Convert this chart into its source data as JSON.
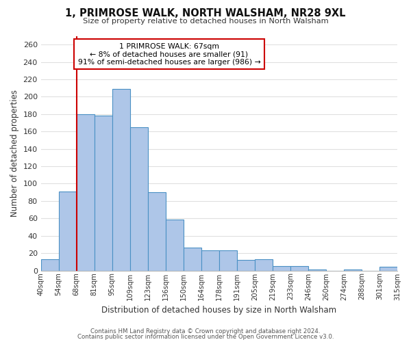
{
  "title": "1, PRIMROSE WALK, NORTH WALSHAM, NR28 9XL",
  "subtitle": "Size of property relative to detached houses in North Walsham",
  "xlabel": "Distribution of detached houses by size in North Walsham",
  "ylabel": "Number of detached properties",
  "bar_color": "#aec6e8",
  "bar_edge_color": "#4a90c4",
  "background_color": "#ffffff",
  "grid_color": "#e0e0e0",
  "annotation_line_color": "#cc0000",
  "bin_labels": [
    "40sqm",
    "54sqm",
    "68sqm",
    "81sqm",
    "95sqm",
    "109sqm",
    "123sqm",
    "136sqm",
    "150sqm",
    "164sqm",
    "178sqm",
    "191sqm",
    "205sqm",
    "219sqm",
    "233sqm",
    "246sqm",
    "260sqm",
    "274sqm",
    "288sqm",
    "301sqm",
    "315sqm"
  ],
  "bar_heights": [
    13,
    91,
    180,
    178,
    209,
    165,
    90,
    59,
    26,
    23,
    23,
    12,
    13,
    5,
    5,
    1,
    0,
    1,
    0,
    4
  ],
  "marker_bin_index": 2,
  "marker_label": "1 PRIMROSE WALK: 67sqm",
  "annotation_line1": "← 8% of detached houses are smaller (91)",
  "annotation_line2": "91% of semi-detached houses are larger (986) →",
  "ylim": [
    0,
    270
  ],
  "yticks": [
    0,
    20,
    40,
    60,
    80,
    100,
    120,
    140,
    160,
    180,
    200,
    220,
    240,
    260
  ],
  "footer1": "Contains HM Land Registry data © Crown copyright and database right 2024.",
  "footer2": "Contains public sector information licensed under the Open Government Licence v3.0."
}
